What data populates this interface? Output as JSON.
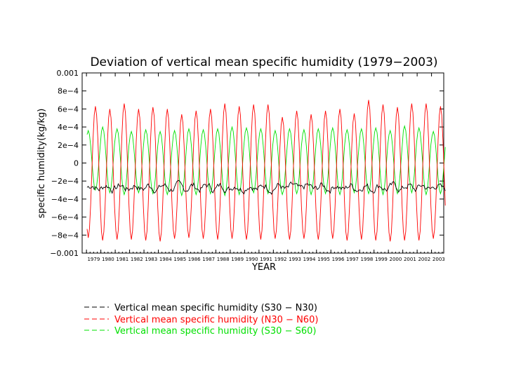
{
  "chart_data": {
    "type": "line",
    "title": "Deviation of vertical mean specific humidity (1979−2003)",
    "xlabel": "YEAR",
    "ylabel": "specific humidity(kg/kg)",
    "xlim": [
      1978.7,
      2003.85
    ],
    "ylim": [
      -0.001,
      0.001
    ],
    "yticks": [
      -0.001,
      -0.0008,
      -0.0006,
      -0.0004,
      -0.0002,
      0,
      0.0002,
      0.0004,
      0.0006,
      0.0008,
      0.001
    ],
    "ytick_labels": [
      "−0.001",
      "−8e−4",
      "−6e−4",
      "−4e−4",
      "−2e−4",
      "0",
      "2e−4",
      "4e−4",
      "6e−4",
      "8e−4",
      "0.001"
    ],
    "xtick_labels": [
      "1979",
      "1980",
      "1981",
      "1982",
      "1983",
      "1984",
      "1985",
      "1986",
      "1987",
      "1988",
      "1989",
      "1990",
      "1991",
      "1992",
      "1993",
      "1994",
      "1995",
      "1996",
      "1997",
      "1998",
      "1999",
      "2000",
      "2001",
      "2002",
      "2003"
    ],
    "legend_position": "bottom-left",
    "start_year": 1979,
    "series": [
      {
        "name": "Vertical mean specific humidity (S30 − N30)",
        "color": "#000000",
        "style": "monthly anomaly, slightly negative mean with small noise",
        "mean": -0.00027,
        "amplitude": 5e-05,
        "phase": 6
      },
      {
        "name": "Vertical mean specific humidity (N30 − N60)",
        "color": "#ff0000",
        "style": "strong annual cycle",
        "peaks": [
          0.00063,
          0.0006,
          0.00066,
          0.0006,
          0.00062,
          0.0006,
          0.00054,
          0.00058,
          0.0006,
          0.00066,
          0.00063,
          0.00065,
          0.00065,
          0.00051,
          0.00058,
          0.00054,
          0.00058,
          0.0006,
          0.00055,
          0.0007,
          0.00065,
          0.00062,
          0.00066,
          0.00066,
          0.00063
        ],
        "troughs": [
          -0.00083,
          -0.00086,
          -0.00085,
          -0.00085,
          -0.00086,
          -0.00087,
          -0.00084,
          -0.00083,
          -0.00084,
          -0.00085,
          -0.00084,
          -0.00085,
          -0.00085,
          -0.00084,
          -0.00085,
          -0.00084,
          -0.00085,
          -0.00084,
          -0.00086,
          -0.00085,
          -0.00086,
          -0.00087,
          -0.00086,
          -0.00086,
          -0.00084
        ]
      },
      {
        "name": "Vertical mean specific humidity (S30 − S60)",
        "color": "#00e000",
        "style": "annual cycle opposite phase",
        "peaks": [
          0.00036,
          0.0004,
          0.00038,
          0.00035,
          0.00037,
          0.00035,
          0.00036,
          0.00038,
          0.00037,
          0.00038,
          0.0004,
          0.00039,
          0.00038,
          0.00036,
          0.00038,
          0.00037,
          0.00038,
          0.00039,
          0.00037,
          0.00038,
          0.00039,
          0.00036,
          0.00041,
          0.00039,
          0.00035
        ],
        "troughs": [
          -0.0003,
          -0.00033,
          -0.00035,
          -0.00033,
          -0.00034,
          -0.00035,
          -0.00036,
          -0.00035,
          -0.00034,
          -0.00036,
          -0.00035,
          -0.00033,
          -0.00034,
          -0.00035,
          -0.00034,
          -0.00035,
          -0.00034,
          -0.00035,
          -0.00033,
          -0.00034,
          -0.00035,
          -0.00034,
          -0.00033,
          -0.00035,
          -0.00034
        ]
      }
    ]
  }
}
